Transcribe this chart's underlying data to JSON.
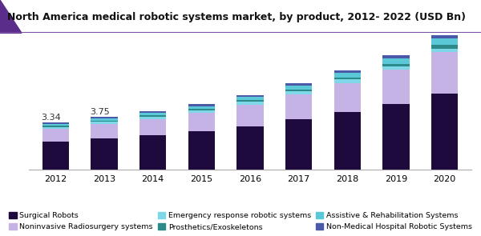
{
  "title": "North America medical robotic systems market, by product, 2012- 2022 (USD Bn)",
  "years": [
    2012,
    2013,
    2014,
    2015,
    2016,
    2017,
    2018,
    2019,
    2020
  ],
  "annotations": {
    "2012": "3.34",
    "2013": "3.75"
  },
  "series": {
    "Surgical Robots": [
      2.0,
      2.2,
      2.45,
      2.75,
      3.1,
      3.6,
      4.1,
      4.65,
      5.4
    ],
    "Noninvasive Radiosurgery systems": [
      0.9,
      1.05,
      1.15,
      1.3,
      1.5,
      1.75,
      2.05,
      2.45,
      2.9
    ],
    "Emergency response robotic systems": [
      0.13,
      0.16,
      0.14,
      0.17,
      0.22,
      0.2,
      0.23,
      0.22,
      0.28
    ],
    "Prosthetics/Exoskeletons": [
      0.08,
      0.08,
      0.1,
      0.09,
      0.11,
      0.12,
      0.15,
      0.18,
      0.24
    ],
    "Assistive & Rehabilitation Systems": [
      0.15,
      0.17,
      0.18,
      0.2,
      0.23,
      0.27,
      0.32,
      0.37,
      0.48
    ],
    "Non-Medical Hospital Robotic Systems": [
      0.08,
      0.09,
      0.1,
      0.12,
      0.14,
      0.17,
      0.2,
      0.25,
      0.32
    ]
  },
  "colors": {
    "Surgical Robots": "#1e0a3c",
    "Noninvasive Radiosurgery systems": "#c5b3e6",
    "Emergency response robotic systems": "#7fd8e8",
    "Prosthetics/Exoskeletons": "#2d8a8a",
    "Assistive & Rehabilitation Systems": "#5bc8d8",
    "Non-Medical Hospital Robotic Systems": "#4a5aa8"
  },
  "background_color": "#ffffff",
  "plot_bg_color": "#f9f9f9",
  "ylim": [
    0,
    9.5
  ],
  "bar_width": 0.55,
  "title_fontsize": 9.0,
  "legend_fontsize": 6.8,
  "tick_fontsize": 8,
  "annotation_fontsize": 8,
  "title_bg_color": "#ece6f5",
  "header_line_color": "#7b4fa6",
  "title_triangle_color": "#5a2d8a"
}
